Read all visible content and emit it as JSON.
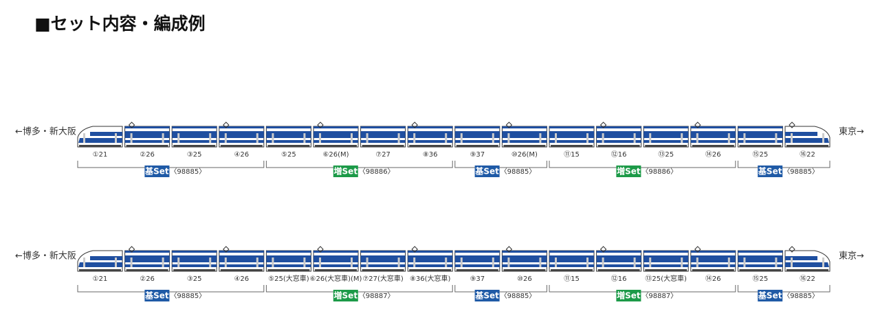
{
  "title": "■セット内容・編成例",
  "formations": [
    {
      "left": "←博多・新大阪",
      "right": "東京→",
      "sets": [
        {
          "label": "基Set",
          "code": "〈98885〉",
          "color": "#1f5aa6",
          "cars": [
            "①21",
            "②26",
            "③25",
            "④26"
          ]
        },
        {
          "label": "増Set",
          "code": "〈98886〉",
          "color": "#1c9a48",
          "cars": [
            "⑤25",
            "⑥26(M)",
            "⑦27",
            "⑧36"
          ]
        },
        {
          "label": "基Set",
          "code": "〈98885〉",
          "color": "#1f5aa6",
          "cars": [
            "⑨37",
            "⑩26(M)"
          ]
        },
        {
          "label": "増Set",
          "code": "〈98886〉",
          "color": "#1c9a48",
          "cars": [
            "⑪15",
            "⑫16",
            "⑬25",
            "⑭26"
          ]
        },
        {
          "label": "基Set",
          "code": "〈98885〉",
          "color": "#1f5aa6",
          "cars": [
            "⑮25",
            "⑯22"
          ]
        }
      ]
    },
    {
      "left": "←博多・新大阪",
      "right": "東京→",
      "sets": [
        {
          "label": "基Set",
          "code": "〈98885〉",
          "color": "#1f5aa6",
          "cars": [
            "①21",
            "②26",
            "③25",
            "④26"
          ]
        },
        {
          "label": "増Set",
          "code": "〈98887〉",
          "color": "#1c9a48",
          "cars": [
            "⑤25(大窓車)",
            "⑥26(大窓車)(M)",
            "⑦27(大窓車)",
            "⑧36(大窓車)"
          ]
        },
        {
          "label": "基Set",
          "code": "〈98885〉",
          "color": "#1f5aa6",
          "cars": [
            "⑨37",
            "⑩26"
          ]
        },
        {
          "label": "増Set",
          "code": "〈98887〉",
          "color": "#1c9a48",
          "cars": [
            "⑪15",
            "⑫16",
            "⑬25(大窓車)",
            "⑭26"
          ]
        },
        {
          "label": "基Set",
          "code": "〈98885〉",
          "color": "#1f5aa6",
          "cars": [
            "⑮25",
            "⑯22"
          ]
        }
      ]
    }
  ]
}
